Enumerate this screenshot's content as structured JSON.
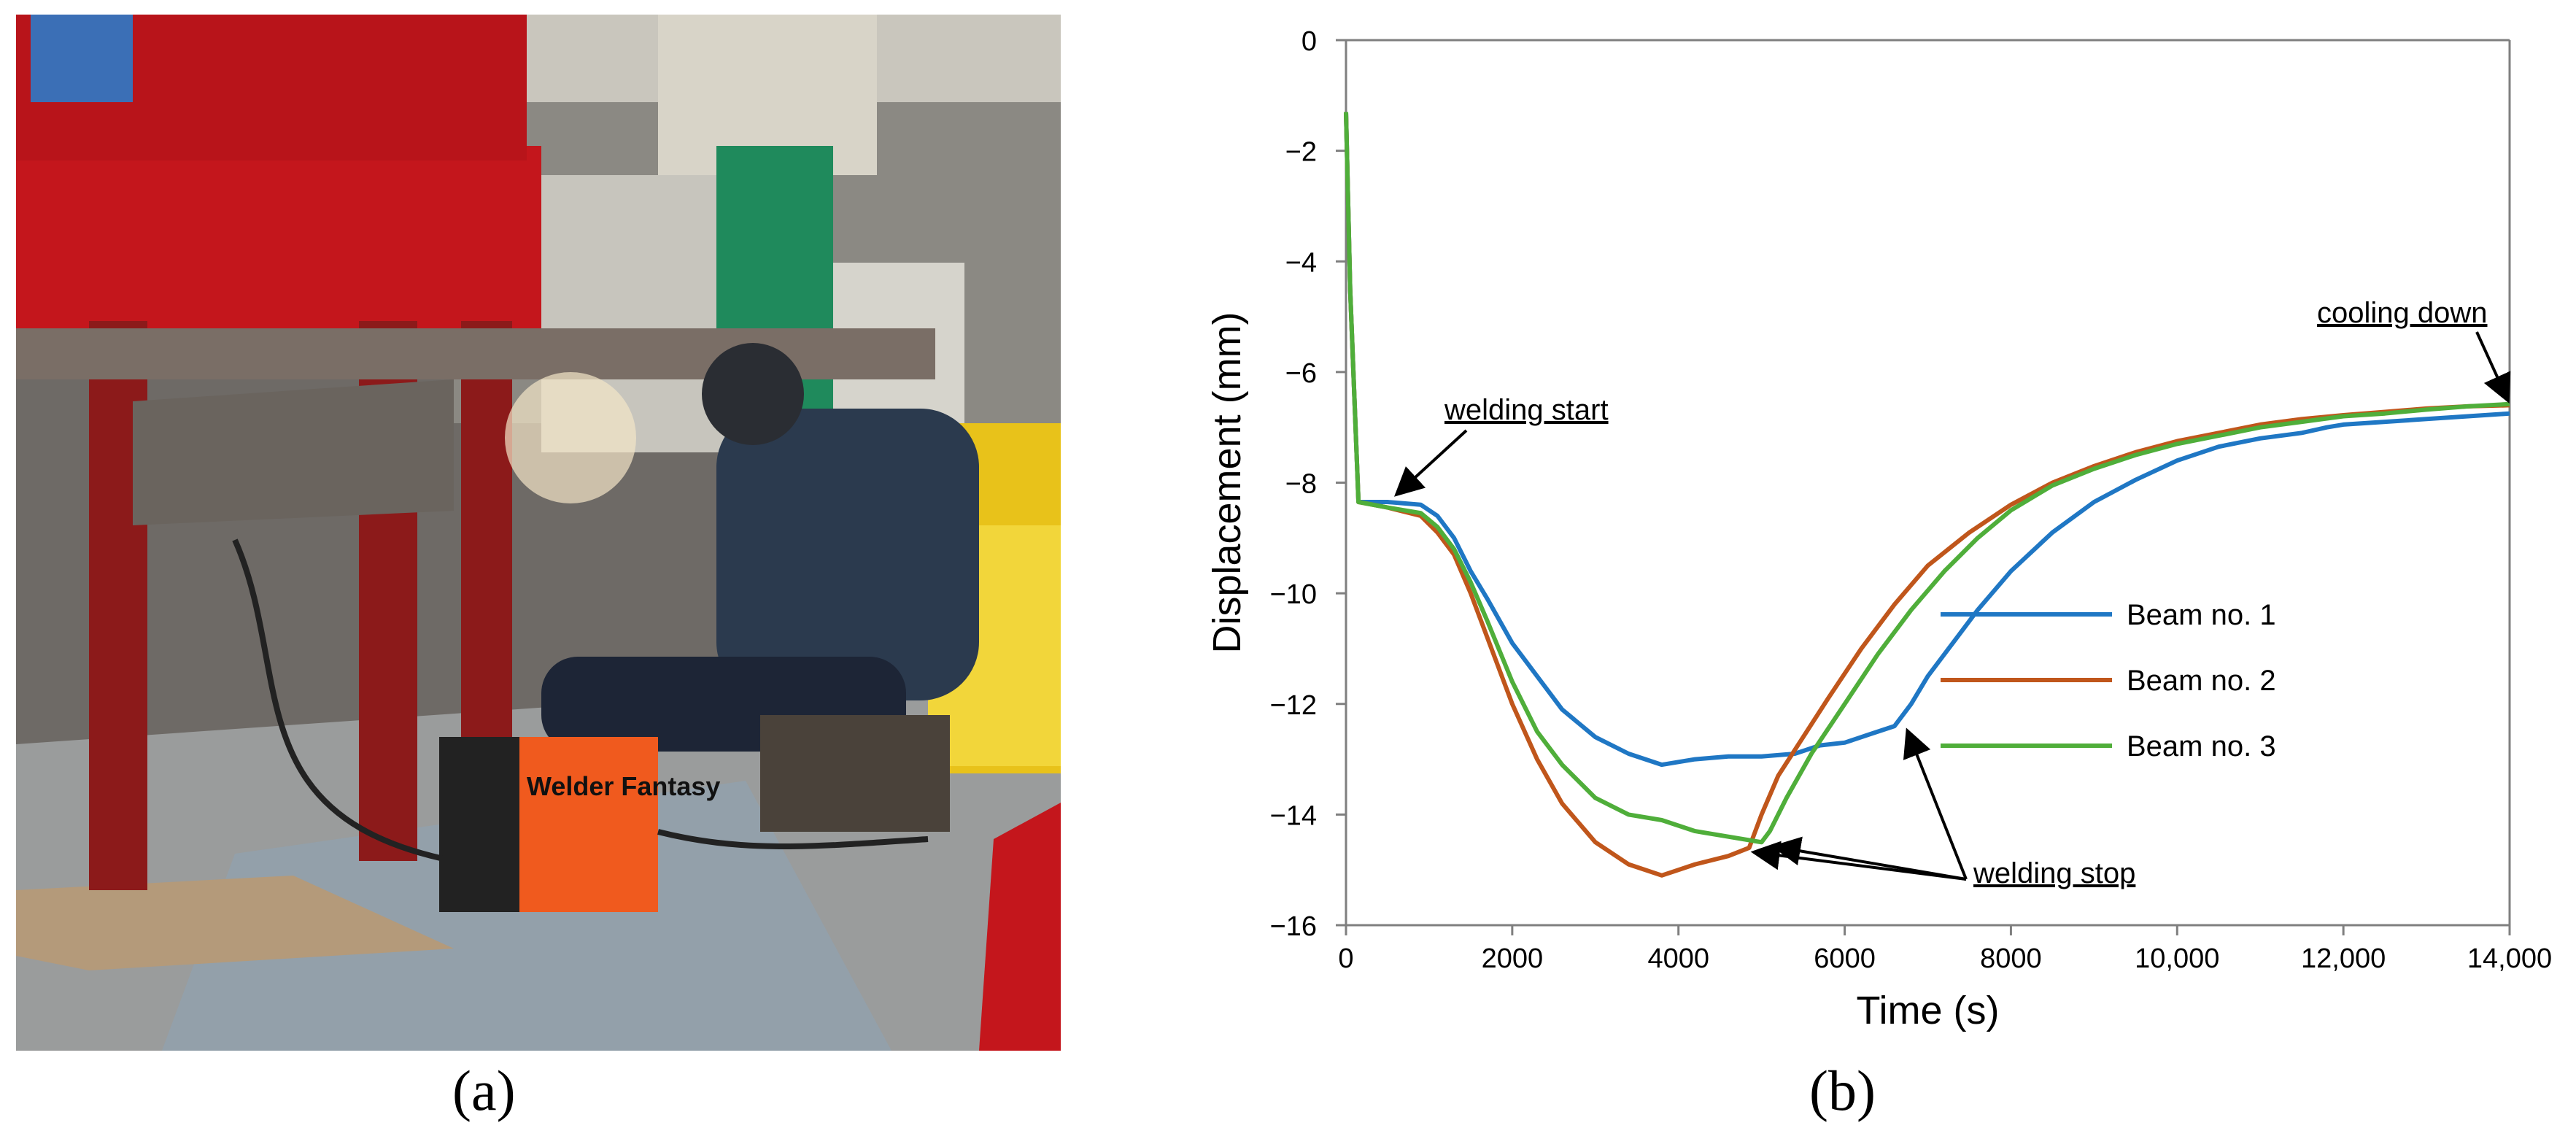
{
  "panel_a": {
    "caption": "(a)",
    "photo_text": {
      "welder_brand": "Welder Fantasy"
    }
  },
  "panel_b": {
    "caption": "(b)"
  },
  "colors": {
    "beam1": "#1f77c4",
    "beam2": "#c0561b",
    "beam3": "#4fae3a",
    "axis": "#7f7f7f"
  },
  "chart_data": {
    "type": "line",
    "title": "",
    "xlabel": "Time (s)",
    "ylabel": "Displacement (mm)",
    "xlim": [
      0,
      14000
    ],
    "ylim": [
      -16,
      0
    ],
    "xticks": [
      0,
      2000,
      4000,
      6000,
      8000,
      10000,
      12000,
      14000
    ],
    "xtick_labels": [
      "0",
      "2000",
      "4000",
      "6000",
      "8000",
      "10,000",
      "12,000",
      "14,000"
    ],
    "yticks": [
      0,
      -2,
      -4,
      -6,
      -8,
      -10,
      -12,
      -14,
      -16
    ],
    "ytick_labels": [
      "0",
      "−2",
      "−4",
      "−6",
      "−8",
      "−10",
      "−12",
      "−14",
      "−16"
    ],
    "grid": false,
    "legend_position": "right",
    "series": [
      {
        "name": "Beam no. 1",
        "color": "#1f77c4",
        "x": [
          0,
          50,
          150,
          500,
          900,
          1100,
          1300,
          1500,
          1700,
          2000,
          2300,
          2600,
          3000,
          3400,
          3800,
          4200,
          4600,
          5000,
          5400,
          5700,
          6000,
          6300,
          6600,
          6800,
          7000,
          7300,
          7600,
          8000,
          8500,
          9000,
          9500,
          10000,
          10500,
          11000,
          11500,
          11800,
          12000,
          12500,
          13000,
          13500,
          14000
        ],
        "y": [
          -1.3,
          -4.5,
          -8.35,
          -8.35,
          -8.4,
          -8.6,
          -9.0,
          -9.6,
          -10.1,
          -10.9,
          -11.5,
          -12.1,
          -12.6,
          -12.9,
          -13.1,
          -13.0,
          -12.95,
          -12.95,
          -12.9,
          -12.75,
          -12.7,
          -12.55,
          -12.4,
          -12.0,
          -11.5,
          -10.9,
          -10.3,
          -9.6,
          -8.9,
          -8.35,
          -7.95,
          -7.6,
          -7.35,
          -7.2,
          -7.1,
          -7.0,
          -6.95,
          -6.9,
          -6.85,
          -6.8,
          -6.75
        ]
      },
      {
        "name": "Beam no. 2",
        "color": "#c0561b",
        "x": [
          0,
          50,
          150,
          500,
          900,
          1100,
          1300,
          1500,
          1700,
          2000,
          2300,
          2600,
          3000,
          3400,
          3800,
          4200,
          4600,
          4850,
          5000,
          5200,
          5500,
          5800,
          6200,
          6600,
          7000,
          7500,
          8000,
          8500,
          9000,
          9500,
          10000,
          10500,
          11000,
          11500,
          12000,
          12500,
          13000,
          13500,
          14000
        ],
        "y": [
          -1.3,
          -4.5,
          -8.35,
          -8.45,
          -8.6,
          -8.9,
          -9.3,
          -10.0,
          -10.8,
          -12.0,
          -13.0,
          -13.8,
          -14.5,
          -14.9,
          -15.1,
          -14.9,
          -14.75,
          -14.6,
          -14.0,
          -13.3,
          -12.6,
          -11.9,
          -11.0,
          -10.2,
          -9.5,
          -8.9,
          -8.4,
          -8.0,
          -7.7,
          -7.45,
          -7.25,
          -7.1,
          -6.95,
          -6.85,
          -6.78,
          -6.72,
          -6.66,
          -6.62,
          -6.6
        ]
      },
      {
        "name": "Beam no. 3",
        "color": "#4fae3a",
        "x": [
          0,
          50,
          150,
          500,
          900,
          1100,
          1300,
          1500,
          1700,
          2000,
          2300,
          2600,
          3000,
          3400,
          3800,
          4200,
          4600,
          5000,
          5100,
          5300,
          5600,
          6000,
          6400,
          6800,
          7200,
          7600,
          8000,
          8500,
          9000,
          9500,
          10000,
          10500,
          11000,
          11500,
          12000,
          12500,
          13000,
          13500,
          14000
        ],
        "y": [
          -1.3,
          -4.5,
          -8.35,
          -8.45,
          -8.55,
          -8.8,
          -9.2,
          -9.8,
          -10.5,
          -11.6,
          -12.5,
          -13.1,
          -13.7,
          -14.0,
          -14.1,
          -14.3,
          -14.4,
          -14.5,
          -14.3,
          -13.7,
          -12.9,
          -12.0,
          -11.1,
          -10.3,
          -9.6,
          -9.0,
          -8.5,
          -8.05,
          -7.75,
          -7.5,
          -7.3,
          -7.15,
          -7.0,
          -6.9,
          -6.8,
          -6.75,
          -6.68,
          -6.62,
          -6.58
        ]
      }
    ],
    "annotations": [
      {
        "text": "welding start",
        "target_x": 500,
        "target_y": -8.35
      },
      {
        "text": "cooling down",
        "target_x": 14000,
        "target_y": -6.6
      },
      {
        "text": "welding stop",
        "targets": [
          [
            6700,
            -12.4
          ],
          [
            5100,
            -14.5
          ],
          [
            4850,
            -14.6
          ]
        ]
      }
    ]
  }
}
